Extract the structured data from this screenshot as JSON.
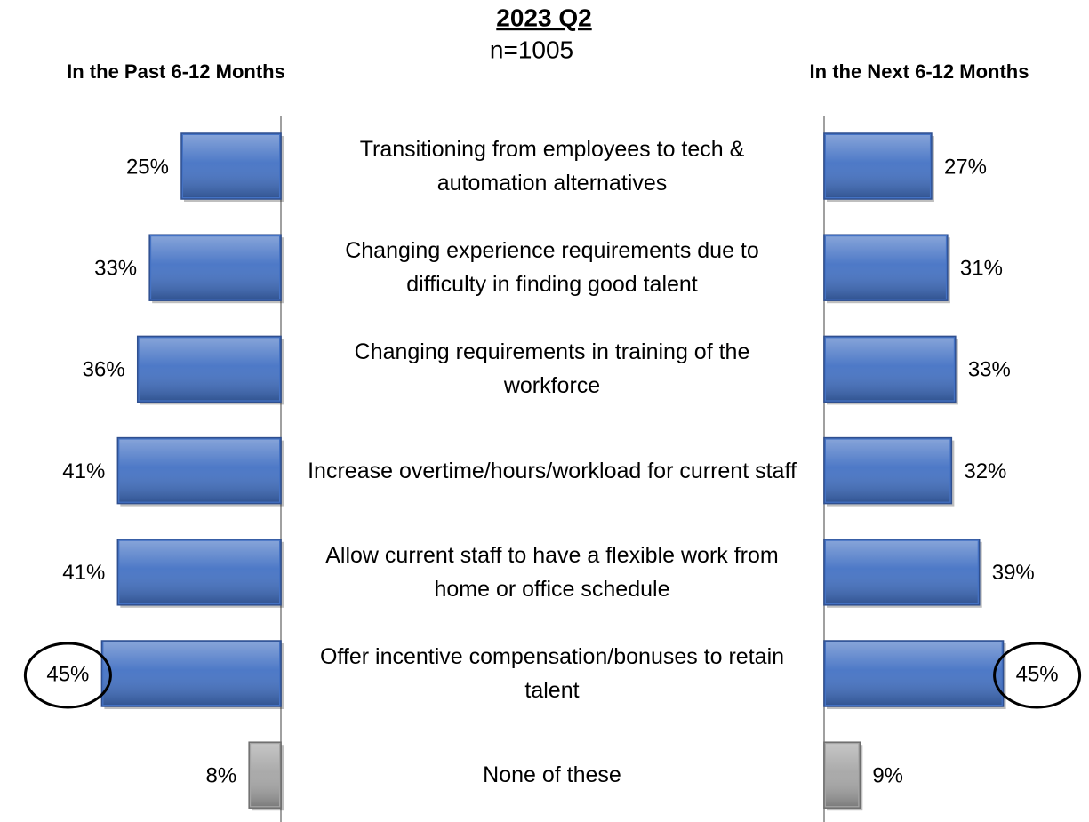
{
  "chart_data": {
    "type": "butterfly",
    "title": "2023 Q2",
    "subtitle": "n=1005",
    "categories": [
      "Transitioning from employees to tech & automation alternatives",
      "Changing experience requirements due to difficulty in finding good talent",
      "Changing requirements in training of the workforce",
      "Increase overtime/hours/workload for current staff",
      "Allow current staff to have a flexible work from home or office schedule",
      "Offer incentive compensation/bonuses to retain talent",
      "None of these"
    ],
    "xlim": [
      0,
      50
    ],
    "highlight": [
      5
    ],
    "series": [
      {
        "name": "In the Past 6-12 Months",
        "side": "left",
        "values": [
          25,
          33,
          36,
          41,
          41,
          45,
          8
        ],
        "value_labels": [
          "25%",
          "33%",
          "36%",
          "41%",
          "41%",
          "45%",
          "8%"
        ],
        "colors": [
          "#4472c4",
          "#4472c4",
          "#4472c4",
          "#4472c4",
          "#4472c4",
          "#4472c4",
          "#a6a6a6"
        ]
      },
      {
        "name": "In the Next 6-12 Months",
        "side": "right",
        "values": [
          27,
          31,
          33,
          32,
          39,
          45,
          9
        ],
        "value_labels": [
          "27%",
          "31%",
          "33%",
          "32%",
          "39%",
          "45%",
          "9%"
        ],
        "colors": [
          "#4472c4",
          "#4472c4",
          "#4472c4",
          "#4472c4",
          "#4472c4",
          "#4472c4",
          "#a6a6a6"
        ]
      }
    ]
  }
}
